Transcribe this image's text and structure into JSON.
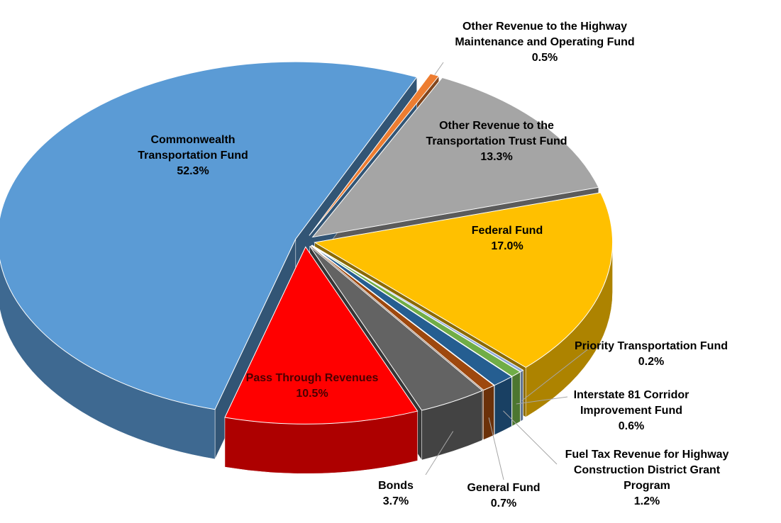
{
  "chart_data": {
    "type": "pie3d",
    "categories": [
      "Other Revenue to the Highway Maintenance and Operating Fund",
      "Other Revenue to the Transportation Trust Fund",
      "Federal Fund",
      "Priority Transportation Fund",
      "Interstate 81 Corridor Improvement Fund",
      "Fuel Tax Revenue for Highway Construction District Grant Program",
      "General Fund",
      "Bonds",
      "Pass Through Revenues",
      "Commonwealth Transportation Fund"
    ],
    "values": [
      0.5,
      13.3,
      17.0,
      0.2,
      0.6,
      1.2,
      0.7,
      3.7,
      10.5,
      52.3
    ],
    "value_labels": [
      "0.5%",
      "13.3%",
      "17.0%",
      "0.2%",
      "0.6%",
      "1.2%",
      "0.7%",
      "3.7%",
      "10.5%",
      "52.3%"
    ],
    "colors": [
      "#ed7d31",
      "#a5a5a5",
      "#ffc000",
      "#8faadc",
      "#70ad47",
      "#255e91",
      "#9e480e",
      "#636363",
      "#ff0000",
      "#5b9bd5"
    ]
  }
}
